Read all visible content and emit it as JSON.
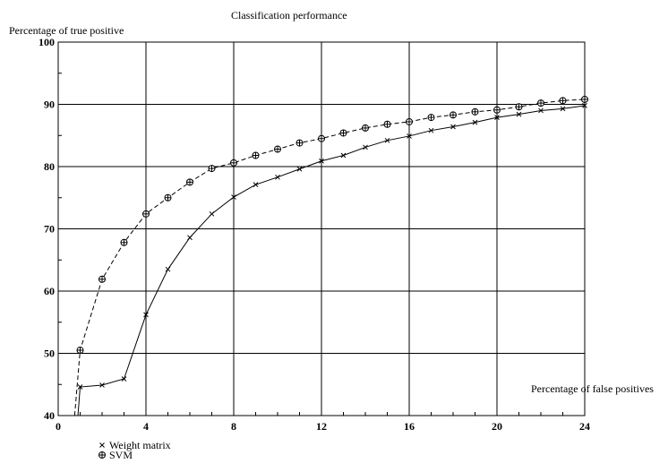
{
  "chart_data": {
    "type": "line",
    "title": "Classification performance",
    "ylabel": "Percentage of true positive",
    "xlabel": "Percentage of false positives",
    "xlim": [
      0,
      24
    ],
    "ylim": [
      40,
      100
    ],
    "x_ticks": [
      "0",
      "4",
      "8",
      "12",
      "16",
      "20",
      "24"
    ],
    "y_ticks": [
      "40",
      "50",
      "60",
      "70",
      "80",
      "90",
      "100"
    ],
    "grid": true,
    "legend_position": "bottom-left",
    "series": [
      {
        "name": "Weight matrix",
        "style": "solid",
        "marker": "x",
        "color": "#000000",
        "x": [
          0.9,
          1,
          2,
          3,
          4,
          5,
          6,
          7,
          8,
          9,
          10,
          11,
          12,
          13,
          14,
          15,
          16,
          17,
          18,
          19,
          20,
          21,
          22,
          23,
          24
        ],
        "y": [
          40,
          44.6,
          44.9,
          45.9,
          56.2,
          63.5,
          68.6,
          72.4,
          75.1,
          77.1,
          78.3,
          79.6,
          80.9,
          81.8,
          83.1,
          84.2,
          84.9,
          85.8,
          86.4,
          87.1,
          87.9,
          88.4,
          89.0,
          89.3,
          89.8
        ]
      },
      {
        "name": "SVM",
        "style": "dashed",
        "marker": "circle-plus",
        "color": "#000000",
        "x": [
          0.75,
          1,
          2,
          3,
          4,
          5,
          6,
          7,
          8,
          9,
          10,
          11,
          12,
          13,
          14,
          15,
          16,
          17,
          18,
          19,
          20,
          21,
          22,
          23,
          24
        ],
        "y": [
          40,
          50.5,
          61.9,
          67.8,
          72.4,
          75.0,
          77.5,
          79.7,
          80.6,
          81.8,
          82.8,
          83.8,
          84.5,
          85.4,
          86.2,
          86.8,
          87.2,
          87.9,
          88.3,
          88.8,
          89.1,
          89.6,
          90.2,
          90.6,
          90.8
        ]
      }
    ]
  }
}
